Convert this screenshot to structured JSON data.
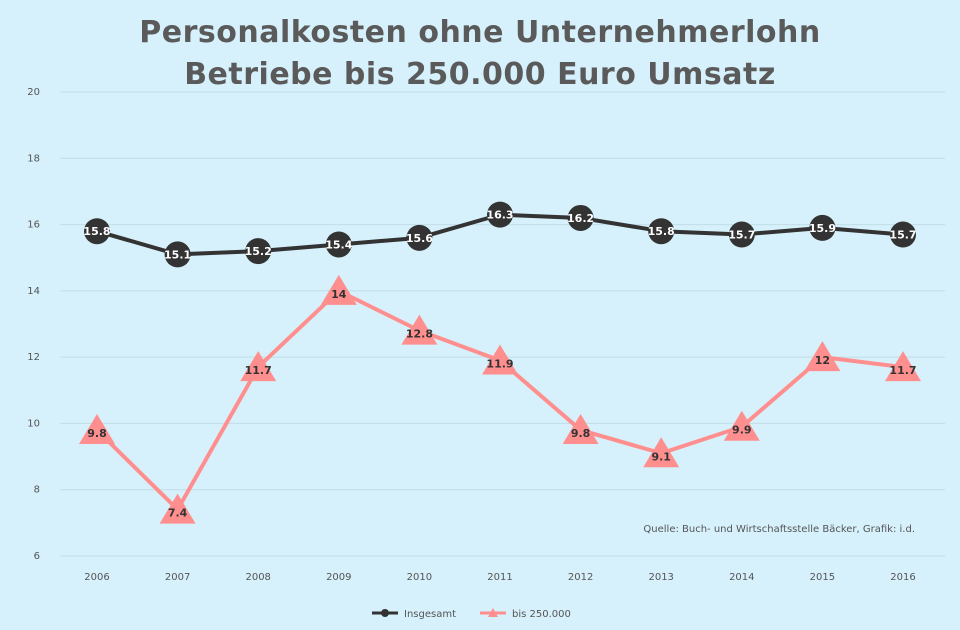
{
  "title_line1": "Personalkosten ohne Unternehmerlohn",
  "title_line2": "Betriebe bis 250.000 Euro Umsatz",
  "source": "Quelle: Buch- und Wirtschaftsstelle Bäcker, Grafik: i.d.",
  "chart_data": {
    "type": "line",
    "title": "Personalkosten ohne Unternehmerlohn Betriebe bis 250.000 Euro Umsatz",
    "categories": [
      "2006",
      "2007",
      "2008",
      "2009",
      "2010",
      "2011",
      "2012",
      "2013",
      "2014",
      "2015",
      "2016"
    ],
    "ylim": [
      6,
      20
    ],
    "yticks": [
      "20",
      "18",
      "16",
      "14",
      "12",
      "10",
      "8",
      "6"
    ],
    "grid": true,
    "legend_position": "bottom",
    "series": [
      {
        "name": "Insgesamt",
        "color": "#333333",
        "marker": "circle",
        "values": [
          15.8,
          15.1,
          15.2,
          15.4,
          15.6,
          16.3,
          16.2,
          15.8,
          15.7,
          15.9,
          15.7
        ],
        "labels": [
          "15.8",
          "15.1",
          "15.2",
          "15.4",
          "15.6",
          "16.3",
          "16.2",
          "15.8",
          "15.7",
          "15.9",
          "15.7"
        ]
      },
      {
        "name": "bis 250.000",
        "color": "#ff8f8f",
        "marker": "triangle",
        "values": [
          9.8,
          7.4,
          11.7,
          14.0,
          12.8,
          11.9,
          9.8,
          9.1,
          9.9,
          12.0,
          11.7
        ],
        "labels": [
          "9.8",
          "7.4",
          "11.7",
          "14",
          "12.8",
          "11.9",
          "9.8",
          "9.1",
          "9.9",
          "12",
          "11.7"
        ]
      }
    ]
  }
}
